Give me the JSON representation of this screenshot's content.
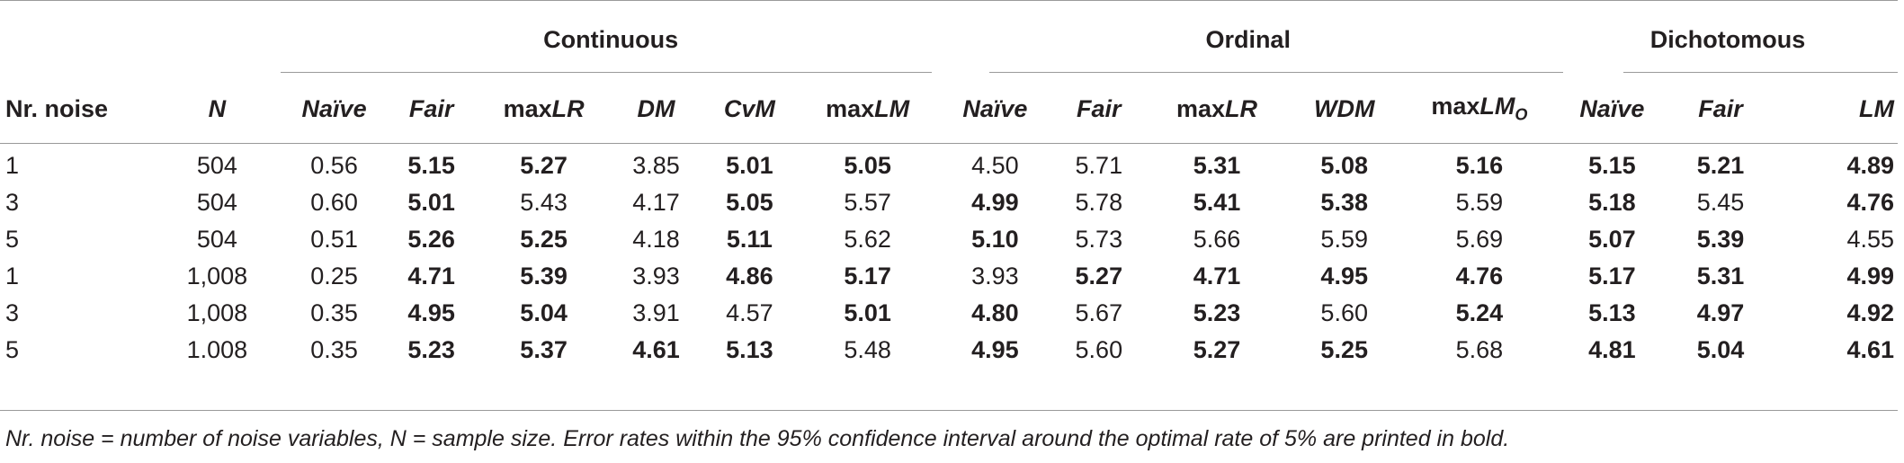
{
  "groups": {
    "continuous": "Continuous",
    "ordinal": "Ordinal",
    "dichotomous": "Dichotomous"
  },
  "columns": {
    "nr_noise": "Nr. noise",
    "n": "N",
    "cont_naive": "Naïve",
    "cont_fair": "Fair",
    "cont_maxlr_prefix": "max",
    "cont_maxlr_suffix": "LR",
    "cont_dm": "DM",
    "cont_cvm": "CvM",
    "cont_maxlm_prefix": "max",
    "cont_maxlm_suffix": "LM",
    "ord_naive": "Naïve",
    "ord_fair": "Fair",
    "ord_maxlr_prefix": "max",
    "ord_maxlr_suffix": "LR",
    "ord_wdm": "WDM",
    "ord_maxlmo_prefix": "max",
    "ord_maxlmo_suffix": "LM",
    "ord_maxlmo_sub": "O",
    "dich_naive": "Naïve",
    "dich_fair": "Fair",
    "dich_lm": "LM"
  },
  "rows": [
    {
      "nr": "1",
      "n": "504",
      "cells": [
        {
          "v": "0.56",
          "b": false
        },
        {
          "v": "5.15",
          "b": true
        },
        {
          "v": "5.27",
          "b": true
        },
        {
          "v": "3.85",
          "b": false
        },
        {
          "v": "5.01",
          "b": true
        },
        {
          "v": "5.05",
          "b": true
        },
        {
          "v": "4.50",
          "b": false
        },
        {
          "v": "5.71",
          "b": false
        },
        {
          "v": "5.31",
          "b": true
        },
        {
          "v": "5.08",
          "b": true
        },
        {
          "v": "5.16",
          "b": true
        },
        {
          "v": "5.15",
          "b": true
        },
        {
          "v": "5.21",
          "b": true
        },
        {
          "v": "4.89",
          "b": true
        }
      ]
    },
    {
      "nr": "3",
      "n": "504",
      "cells": [
        {
          "v": "0.60",
          "b": false
        },
        {
          "v": "5.01",
          "b": true
        },
        {
          "v": "5.43",
          "b": false
        },
        {
          "v": "4.17",
          "b": false
        },
        {
          "v": "5.05",
          "b": true
        },
        {
          "v": "5.57",
          "b": false
        },
        {
          "v": "4.99",
          "b": true
        },
        {
          "v": "5.78",
          "b": false
        },
        {
          "v": "5.41",
          "b": true
        },
        {
          "v": "5.38",
          "b": true
        },
        {
          "v": "5.59",
          "b": false
        },
        {
          "v": "5.18",
          "b": true
        },
        {
          "v": "5.45",
          "b": false
        },
        {
          "v": "4.76",
          "b": true
        }
      ]
    },
    {
      "nr": "5",
      "n": "504",
      "cells": [
        {
          "v": "0.51",
          "b": false
        },
        {
          "v": "5.26",
          "b": true
        },
        {
          "v": "5.25",
          "b": true
        },
        {
          "v": "4.18",
          "b": false
        },
        {
          "v": "5.11",
          "b": true
        },
        {
          "v": "5.62",
          "b": false
        },
        {
          "v": "5.10",
          "b": true
        },
        {
          "v": "5.73",
          "b": false
        },
        {
          "v": "5.66",
          "b": false
        },
        {
          "v": "5.59",
          "b": false
        },
        {
          "v": "5.69",
          "b": false
        },
        {
          "v": "5.07",
          "b": true
        },
        {
          "v": "5.39",
          "b": true
        },
        {
          "v": "4.55",
          "b": false
        }
      ]
    },
    {
      "nr": "1",
      "n": "1,008",
      "cells": [
        {
          "v": "0.25",
          "b": false
        },
        {
          "v": "4.71",
          "b": true
        },
        {
          "v": "5.39",
          "b": true
        },
        {
          "v": "3.93",
          "b": false
        },
        {
          "v": "4.86",
          "b": true
        },
        {
          "v": "5.17",
          "b": true
        },
        {
          "v": "3.93",
          "b": false
        },
        {
          "v": "5.27",
          "b": true
        },
        {
          "v": "4.71",
          "b": true
        },
        {
          "v": "4.95",
          "b": true
        },
        {
          "v": "4.76",
          "b": true
        },
        {
          "v": "5.17",
          "b": true
        },
        {
          "v": "5.31",
          "b": true
        },
        {
          "v": "4.99",
          "b": true
        }
      ]
    },
    {
      "nr": "3",
      "n": "1,008",
      "cells": [
        {
          "v": "0.35",
          "b": false
        },
        {
          "v": "4.95",
          "b": true
        },
        {
          "v": "5.04",
          "b": true
        },
        {
          "v": "3.91",
          "b": false
        },
        {
          "v": "4.57",
          "b": false
        },
        {
          "v": "5.01",
          "b": true
        },
        {
          "v": "4.80",
          "b": true
        },
        {
          "v": "5.67",
          "b": false
        },
        {
          "v": "5.23",
          "b": true
        },
        {
          "v": "5.60",
          "b": false
        },
        {
          "v": "5.24",
          "b": true
        },
        {
          "v": "5.13",
          "b": true
        },
        {
          "v": "4.97",
          "b": true
        },
        {
          "v": "4.92",
          "b": true
        }
      ]
    },
    {
      "nr": "5",
      "n": "1.008",
      "cells": [
        {
          "v": "0.35",
          "b": false
        },
        {
          "v": "5.23",
          "b": true
        },
        {
          "v": "5.37",
          "b": true
        },
        {
          "v": "4.61",
          "b": true
        },
        {
          "v": "5.13",
          "b": true
        },
        {
          "v": "5.48",
          "b": false
        },
        {
          "v": "4.95",
          "b": true
        },
        {
          "v": "5.60",
          "b": false
        },
        {
          "v": "5.27",
          "b": true
        },
        {
          "v": "5.25",
          "b": true
        },
        {
          "v": "5.68",
          "b": false
        },
        {
          "v": "4.81",
          "b": true
        },
        {
          "v": "5.04",
          "b": true
        },
        {
          "v": "4.61",
          "b": true
        }
      ]
    }
  ],
  "footnote": "Nr. noise = number of noise variables, N = sample size. Error rates within the 95% confidence interval around the optimal rate of 5% are printed in bold."
}
